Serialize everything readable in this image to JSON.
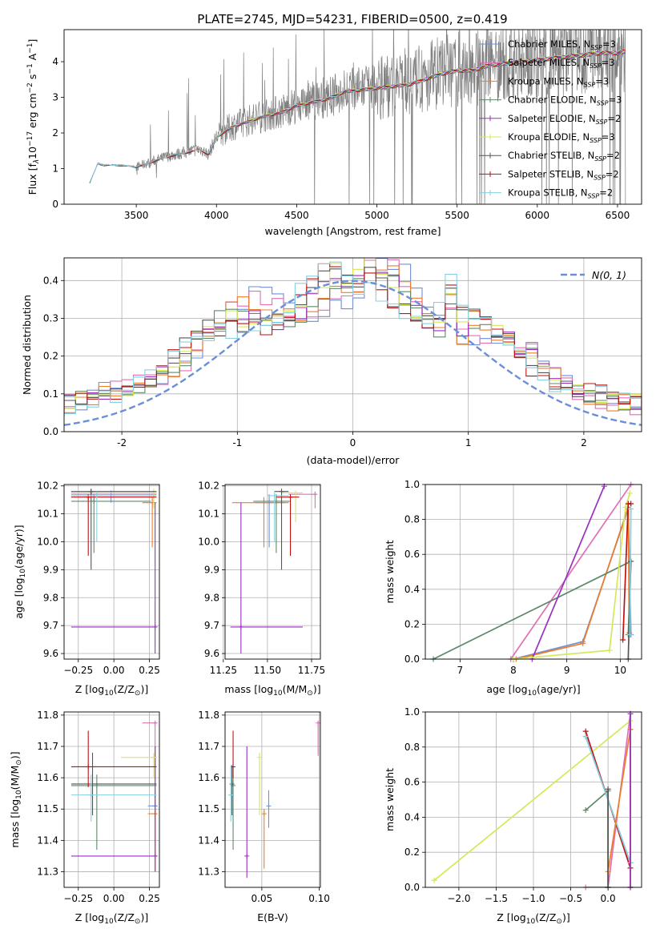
{
  "figure": {
    "title": "PLATE=2745, MJD=54231, FIBERID=0500, z=0.419"
  },
  "colors": {
    "Chabrier MILES": "#6f8fd9",
    "Salpeter MILES": "#e06fb8",
    "Kroupa MILES": "#ee7d29",
    "Chabrier ELODIE": "#5c8a6a",
    "Salpeter ELODIE": "#9b2fc0",
    "Kroupa ELODIE": "#d6e85a",
    "Chabrier STELIB": "#555555",
    "Salpeter STELIB": "#c01010",
    "Kroupa STELIB": "#85d0e0",
    "gaussian": "#6a8fd8",
    "data": "#808080"
  },
  "chart_data": [
    {
      "id": "spectrum",
      "type": "line",
      "xlabel": "wavelength [Angstrom, rest frame]",
      "ylabel_parts": [
        "Flux [f",
        "λ",
        "10",
        "−17",
        " erg cm",
        "−2",
        " s",
        "−1",
        " A",
        "−1",
        "]"
      ],
      "xlim": [
        3050,
        6650
      ],
      "ylim": [
        0,
        4.9
      ],
      "xticks": [
        3500,
        4000,
        4500,
        5000,
        5500,
        6000,
        6500
      ],
      "yticks": [
        0,
        1,
        2,
        3,
        4
      ],
      "legend_position": "upper-right",
      "legend": [
        {
          "name": "Chabrier MILES",
          "subscript": "SSP",
          "n": "=3"
        },
        {
          "name": "Salpeter MILES",
          "subscript": "SSP",
          "n": "=3"
        },
        {
          "name": "Kroupa MILES",
          "subscript": "SSP",
          "n": "=3"
        },
        {
          "name": "Chabrier ELODIE",
          "subscript": "SSP",
          "n": "=3"
        },
        {
          "name": "Salpeter ELODIE",
          "subscript": "SSP",
          "n": "=2"
        },
        {
          "name": "Kroupa ELODIE",
          "subscript": "SSP",
          "n": "=3"
        },
        {
          "name": "Chabrier STELIB",
          "subscript": "SSP",
          "n": "=2"
        },
        {
          "name": "Salpeter STELIB",
          "subscript": "SSP",
          "n": "=2"
        },
        {
          "name": "Kroupa STELIB",
          "subscript": "SSP",
          "n": "=2"
        }
      ],
      "data_envelope": {
        "x": [
          3210,
          3260,
          3300,
          3400,
          3500,
          3600,
          3700,
          3800,
          3900,
          3950,
          4000,
          4100,
          4200,
          4300,
          4400,
          4500,
          4600,
          4700,
          4800,
          4900,
          5000,
          5100,
          5200,
          5300,
          5400,
          5500,
          5600,
          5700,
          5800,
          5900,
          6000,
          6100,
          6200,
          6300,
          6400,
          6500,
          6550
        ],
        "y": [
          0.6,
          1.15,
          1.1,
          1.1,
          1.05,
          1.2,
          1.35,
          1.45,
          1.55,
          1.4,
          1.9,
          2.2,
          2.35,
          2.5,
          2.6,
          2.8,
          2.9,
          3.0,
          3.2,
          3.25,
          3.3,
          3.35,
          3.4,
          3.55,
          3.7,
          3.8,
          3.8,
          3.95,
          4.0,
          4.05,
          4.1,
          4.15,
          4.2,
          4.25,
          4.3,
          4.3,
          4.35
        ]
      }
    },
    {
      "id": "residuals",
      "type": "step-histogram",
      "xlabel": "(data-model)/error",
      "ylabel": "Normed distribution",
      "xlim": [
        -2.5,
        2.5
      ],
      "ylim": [
        0,
        0.46
      ],
      "xticks": [
        -2,
        -1,
        0,
        1,
        2
      ],
      "yticks": [
        0.0,
        0.1,
        0.2,
        0.3,
        0.4
      ],
      "legend_position": "upper-right",
      "gaussian_label": "N(0, 1)",
      "bin_width": 0.1
    },
    {
      "id": "age_vs_Z",
      "type": "errorbar",
      "xlabel_parts": [
        "Z [log",
        "10",
        "(Z/Z",
        "⊙",
        ")]"
      ],
      "ylabel_parts": [
        "age  [log",
        "10",
        "(age/yr)]"
      ],
      "xlim": [
        -0.35,
        0.32
      ],
      "ylim": [
        9.58,
        10.205
      ],
      "xticks": [
        -0.25,
        0.0,
        0.25
      ],
      "xticklabels": [
        "−0.25",
        "0.00",
        "0.25"
      ],
      "yticks": [
        9.6,
        9.7,
        9.8,
        9.9,
        10.0,
        10.1,
        10.2
      ],
      "points": [
        {
          "m": "Chabrier MILES",
          "x": -0.02,
          "y": 10.175,
          "xe": [
            -0.3,
            0.3
          ],
          "ye": [
            10.14,
            10.18
          ]
        },
        {
          "m": "Salpeter MILES",
          "x": 0.28,
          "y": 10.17,
          "xe": [
            -0.3,
            0.3
          ],
          "ye": [
            10.14,
            10.18
          ]
        },
        {
          "m": "Kroupa MILES",
          "x": 0.27,
          "y": 10.14,
          "xe": [
            0.2,
            0.3
          ],
          "ye": [
            9.98,
            10.16
          ]
        },
        {
          "m": "Chabrier ELODIE",
          "x": -0.14,
          "y": 10.145,
          "xe": [
            -0.3,
            0.26
          ],
          "ye": [
            9.96,
            10.17
          ]
        },
        {
          "m": "Salpeter ELODIE",
          "x": 0.29,
          "y": 9.695,
          "xe": [
            -0.3,
            0.3
          ],
          "ye": [
            9.6,
            10.14
          ]
        },
        {
          "m": "Kroupa ELODIE",
          "x": 0.28,
          "y": 10.175,
          "xe": [
            -0.3,
            0.3
          ],
          "ye": [
            10.12,
            10.19
          ]
        },
        {
          "m": "Chabrier STELIB",
          "x": -0.16,
          "y": 10.18,
          "xe": [
            -0.3,
            0.3
          ],
          "ye": [
            9.9,
            10.19
          ]
        },
        {
          "m": "Salpeter STELIB",
          "x": -0.18,
          "y": 10.16,
          "xe": [
            -0.3,
            0.3
          ],
          "ye": [
            9.95,
            10.17
          ]
        },
        {
          "m": "Kroupa STELIB",
          "x": -0.12,
          "y": 10.165,
          "xe": [
            -0.3,
            0.3
          ],
          "ye": [
            10.0,
            10.18
          ]
        }
      ]
    },
    {
      "id": "age_vs_mass",
      "type": "errorbar",
      "xlabel_parts": [
        "mass [log",
        "10",
        "(M/M",
        "⊙",
        ")]"
      ],
      "xlim": [
        11.26,
        11.8
      ],
      "ylim": [
        9.58,
        10.205
      ],
      "xticks": [
        11.25,
        11.5,
        11.75
      ],
      "xticklabels": [
        "11.25",
        "11.50",
        "11.75"
      ],
      "yticks": [
        9.6,
        9.7,
        9.8,
        9.9,
        10.0,
        10.1,
        10.2
      ],
      "points": [
        {
          "m": "Chabrier MILES",
          "x": 11.51,
          "y": 10.14,
          "xe": [
            11.43,
            11.6
          ],
          "ye": [
            9.98,
            10.17
          ]
        },
        {
          "m": "Salpeter MILES",
          "x": 11.77,
          "y": 10.17,
          "xe": [
            11.62,
            11.78
          ],
          "ye": [
            10.12,
            10.18
          ]
        },
        {
          "m": "Kroupa MILES",
          "x": 11.48,
          "y": 10.14,
          "xe": [
            11.3,
            11.62
          ],
          "ye": [
            9.98,
            10.16
          ]
        },
        {
          "m": "Chabrier ELODIE",
          "x": 11.55,
          "y": 10.145,
          "xe": [
            11.42,
            11.63
          ],
          "ye": [
            9.96,
            10.17
          ]
        },
        {
          "m": "Salpeter ELODIE",
          "x": 11.35,
          "y": 9.695,
          "xe": [
            11.29,
            11.7
          ],
          "ye": [
            9.6,
            10.14
          ]
        },
        {
          "m": "Kroupa ELODIE",
          "x": 11.66,
          "y": 10.175,
          "xe": [
            11.58,
            11.7
          ],
          "ye": [
            10.07,
            10.18
          ]
        },
        {
          "m": "Chabrier STELIB",
          "x": 11.58,
          "y": 10.18,
          "xe": [
            11.54,
            11.62
          ],
          "ye": [
            9.9,
            10.19
          ]
        },
        {
          "m": "Salpeter STELIB",
          "x": 11.63,
          "y": 10.16,
          "xe": [
            11.55,
            11.68
          ],
          "ye": [
            9.95,
            10.17
          ]
        },
        {
          "m": "Kroupa STELIB",
          "x": 11.54,
          "y": 10.165,
          "xe": [
            11.5,
            11.62
          ],
          "ye": [
            10.0,
            10.18
          ]
        }
      ]
    },
    {
      "id": "massweight_vs_age",
      "type": "line",
      "xlabel_parts": [
        "age  [log",
        "10",
        "(age/yr)]"
      ],
      "ylabel": "mass weight",
      "xlim": [
        6.35,
        10.4
      ],
      "ylim": [
        0.0,
        1.0
      ],
      "xticks": [
        7,
        8,
        9,
        10
      ],
      "yticks": [
        0.0,
        0.2,
        0.4,
        0.6,
        0.8,
        1.0
      ],
      "yticklabels": [
        "0.0",
        "0.2",
        "0.4",
        "0.6",
        "0.8",
        "1.0"
      ],
      "series": [
        {
          "m": "Chabrier MILES",
          "x": [
            8.0,
            9.3,
            10.15,
            10.2
          ],
          "y": [
            0.0,
            0.1,
            0.86,
            0.14
          ]
        },
        {
          "m": "Kroupa MILES",
          "x": [
            8.05,
            9.3,
            10.15,
            10.17
          ],
          "y": [
            0.0,
            0.09,
            0.87,
            0.15
          ]
        },
        {
          "m": "Salpeter MILES",
          "x": [
            7.95,
            10.2
          ],
          "y": [
            0.0,
            1.0
          ]
        },
        {
          "m": "Chabrier ELODIE",
          "x": [
            6.5,
            10.2,
            10.15
          ],
          "y": [
            0.0,
            0.56,
            0.14
          ]
        },
        {
          "m": "Salpeter ELODIE",
          "x": [
            8.35,
            9.7
          ],
          "y": [
            0.0,
            0.99
          ]
        },
        {
          "m": "Kroupa ELODIE",
          "x": [
            8.0,
            9.8,
            10.1,
            10.18
          ],
          "y": [
            0.0,
            0.05,
            0.87,
            0.95
          ]
        },
        {
          "m": "Chabrier STELIB",
          "x": [
            10.15,
            10.2
          ],
          "y": [
            0.0,
            0.56
          ]
        },
        {
          "m": "Salpeter STELIB",
          "x": [
            10.05,
            10.15,
            10.2
          ],
          "y": [
            0.11,
            0.89,
            0.89
          ]
        },
        {
          "m": "Kroupa STELIB",
          "x": [
            10.18,
            10.2
          ],
          "y": [
            0.14,
            0.86
          ]
        }
      ]
    },
    {
      "id": "mass_vs_Z",
      "type": "errorbar",
      "xlabel_parts": [
        "Z [log",
        "10",
        "(Z/Z",
        "⊙",
        ")]"
      ],
      "ylabel_parts": [
        "mass [log",
        "10",
        "(M/M",
        "⊙",
        ")]"
      ],
      "xlim": [
        -0.35,
        0.32
      ],
      "ylim": [
        11.25,
        11.81
      ],
      "xticks": [
        -0.25,
        0.0,
        0.25
      ],
      "xticklabels": [
        "−0.25",
        "0.00",
        "0.25"
      ],
      "yticks": [
        11.3,
        11.4,
        11.5,
        11.6,
        11.7,
        11.8
      ],
      "points": [
        {
          "m": "Chabrier MILES",
          "x": 0.29,
          "y": 11.51,
          "xe": [
            0.24,
            0.3
          ],
          "ye": [
            11.48,
            11.56
          ]
        },
        {
          "m": "Salpeter MILES",
          "x": 0.29,
          "y": 11.775,
          "xe": [
            0.2,
            0.3
          ],
          "ye": [
            11.3,
            11.78
          ]
        },
        {
          "m": "Kroupa MILES",
          "x": 0.29,
          "y": 11.485,
          "xe": [
            0.24,
            0.3
          ],
          "ye": [
            11.3,
            11.5
          ]
        },
        {
          "m": "Chabrier ELODIE",
          "x": -0.12,
          "y": 11.575,
          "xe": [
            -0.3,
            0.3
          ],
          "ye": [
            11.37,
            11.61
          ]
        },
        {
          "m": "Salpeter ELODIE",
          "x": 0.29,
          "y": 11.35,
          "xe": [
            -0.3,
            0.3
          ],
          "ye": [
            11.3,
            11.7
          ]
        },
        {
          "m": "Kroupa ELODIE",
          "x": 0.28,
          "y": 11.665,
          "xe": [
            0.05,
            0.3
          ],
          "ye": [
            11.6,
            11.68
          ]
        },
        {
          "m": "Chabrier STELIB",
          "x": -0.15,
          "y": 11.58,
          "xe": [
            -0.3,
            0.3
          ],
          "ye": [
            11.48,
            11.68
          ]
        },
        {
          "m": "Salpeter STELIB",
          "x": -0.18,
          "y": 11.635,
          "xe": [
            -0.3,
            0.3
          ],
          "ye": [
            11.57,
            11.75
          ]
        },
        {
          "m": "Kroupa STELIB",
          "x": -0.16,
          "y": 11.545,
          "xe": [
            -0.3,
            0.3
          ],
          "ye": [
            11.46,
            11.61
          ]
        }
      ]
    },
    {
      "id": "mass_vs_EBV",
      "type": "errorbar",
      "xlabel": "E(B-V)",
      "xlim": [
        0.018,
        0.101
      ],
      "ylim": [
        11.25,
        11.81
      ],
      "xticks": [
        0.05,
        0.1
      ],
      "xticklabels": [
        "0.05",
        "0.10"
      ],
      "yticks": [
        11.3,
        11.4,
        11.5,
        11.6,
        11.7,
        11.8
      ],
      "points": [
        {
          "m": "Chabrier MILES",
          "x": 0.056,
          "y": 11.51,
          "ye": [
            11.44,
            11.56
          ]
        },
        {
          "m": "Salpeter MILES",
          "x": 0.099,
          "y": 11.775,
          "ye": [
            11.67,
            11.78
          ]
        },
        {
          "m": "Kroupa MILES",
          "x": 0.052,
          "y": 11.485,
          "ye": [
            11.31,
            11.5
          ]
        },
        {
          "m": "Chabrier ELODIE",
          "x": 0.025,
          "y": 11.575,
          "ye": [
            11.37,
            11.61
          ]
        },
        {
          "m": "Salpeter ELODIE",
          "x": 0.037,
          "y": 11.35,
          "ye": [
            11.28,
            11.7
          ]
        },
        {
          "m": "Kroupa ELODIE",
          "x": 0.048,
          "y": 11.665,
          "ye": [
            11.48,
            11.68
          ]
        },
        {
          "m": "Chabrier STELIB",
          "x": 0.024,
          "y": 11.58,
          "ye": [
            11.48,
            11.64
          ]
        },
        {
          "m": "Salpeter STELIB",
          "x": 0.025,
          "y": 11.635,
          "ye": [
            11.6,
            11.75
          ]
        },
        {
          "m": "Kroupa STELIB",
          "x": 0.023,
          "y": 11.545,
          "ye": [
            11.46,
            11.64
          ]
        }
      ]
    },
    {
      "id": "massweight_vs_Z",
      "type": "line",
      "xlabel_parts": [
        "Z [log",
        "10",
        "(Z/Z",
        "⊙",
        ")]"
      ],
      "ylabel": "mass weight",
      "xlim": [
        -2.45,
        0.45
      ],
      "ylim": [
        0.0,
        1.0
      ],
      "xticks": [
        -2.0,
        -1.5,
        -1.0,
        -0.5,
        0.0
      ],
      "xticklabels": [
        "−2.0",
        "−1.5",
        "−1.0",
        "−0.5",
        "0.0"
      ],
      "yticks": [
        0.0,
        0.2,
        0.4,
        0.6,
        0.8,
        1.0
      ],
      "yticklabels": [
        "0.0",
        "0.2",
        "0.4",
        "0.6",
        "0.8",
        "1.0"
      ],
      "series": [
        {
          "m": "Kroupa ELODIE",
          "x": [
            -2.33,
            0.3,
            0.3
          ],
          "y": [
            0.04,
            0.95,
            0.0
          ]
        },
        {
          "m": "Salpeter MILES",
          "x": [
            -0.3,
            0.0,
            0.3,
            0.3
          ],
          "y": [
            0.0,
            0.0,
            0.99,
            0.9
          ]
        },
        {
          "m": "Chabrier ELODIE",
          "x": [
            -0.3,
            0.0,
            0.0
          ],
          "y": [
            0.44,
            0.55,
            0.0
          ]
        },
        {
          "m": "Chabrier MILES",
          "x": [
            -0.3,
            0.3,
            0.3
          ],
          "y": [
            0.86,
            0.14,
            0.9
          ]
        },
        {
          "m": "Salpeter STELIB",
          "x": [
            -0.3,
            0.3
          ],
          "y": [
            0.89,
            0.11
          ]
        },
        {
          "m": "Kroupa STELIB",
          "x": [
            -0.3,
            0.3
          ],
          "y": [
            0.86,
            0.14
          ]
        },
        {
          "m": "Kroupa MILES",
          "x": [
            0.0,
            0.3,
            0.3
          ],
          "y": [
            0.09,
            0.9,
            0.0
          ]
        },
        {
          "m": "Salpeter ELODIE",
          "x": [
            0.3,
            0.3
          ],
          "y": [
            0.0,
            0.99
          ]
        },
        {
          "m": "Chabrier STELIB",
          "x": [
            0.0,
            0.0
          ],
          "y": [
            0.0,
            0.56
          ]
        }
      ]
    }
  ]
}
